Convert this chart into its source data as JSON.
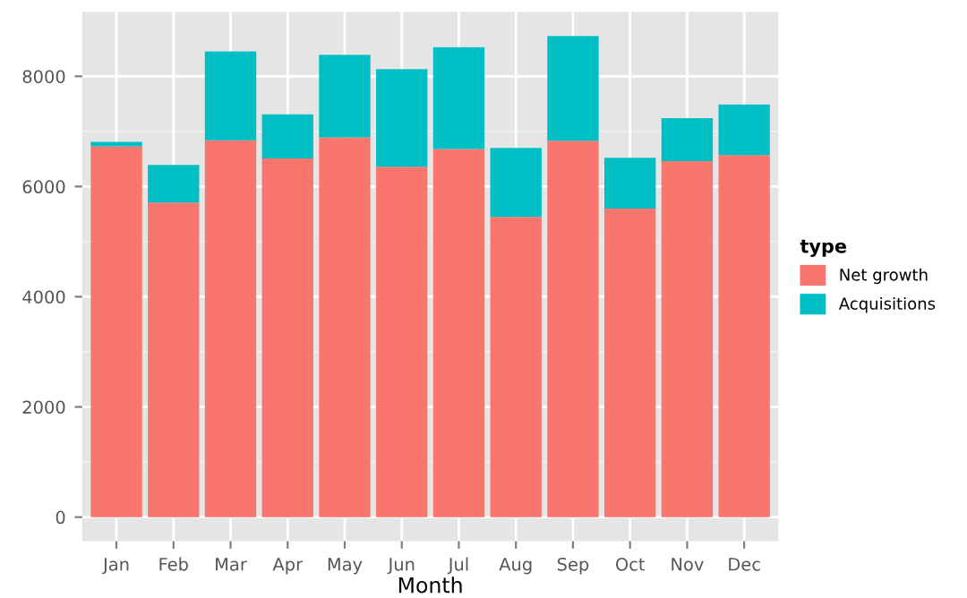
{
  "chart_data": {
    "type": "bar",
    "stacked": true,
    "xlabel": "Month",
    "legend_title": "type",
    "legend": "right",
    "categories": [
      "Jan",
      "Feb",
      "Mar",
      "Apr",
      "May",
      "Jun",
      "Jul",
      "Aug",
      "Sep",
      "Oct",
      "Nov",
      "Dec"
    ],
    "series": [
      {
        "name": "Net growth",
        "color": "#f8766d",
        "values": [
          6730,
          5710,
          6840,
          6510,
          6890,
          6360,
          6680,
          5450,
          6830,
          5600,
          6460,
          6570
        ]
      },
      {
        "name": "Acquisitions",
        "color": "#00bfc4",
        "values": [
          80,
          680,
          1610,
          800,
          1500,
          1770,
          1850,
          1250,
          1900,
          920,
          780,
          920
        ]
      }
    ],
    "ylim": [
      -437,
      9168
    ],
    "yticks": [
      0,
      2000,
      4000,
      6000,
      8000
    ],
    "grid": true
  }
}
